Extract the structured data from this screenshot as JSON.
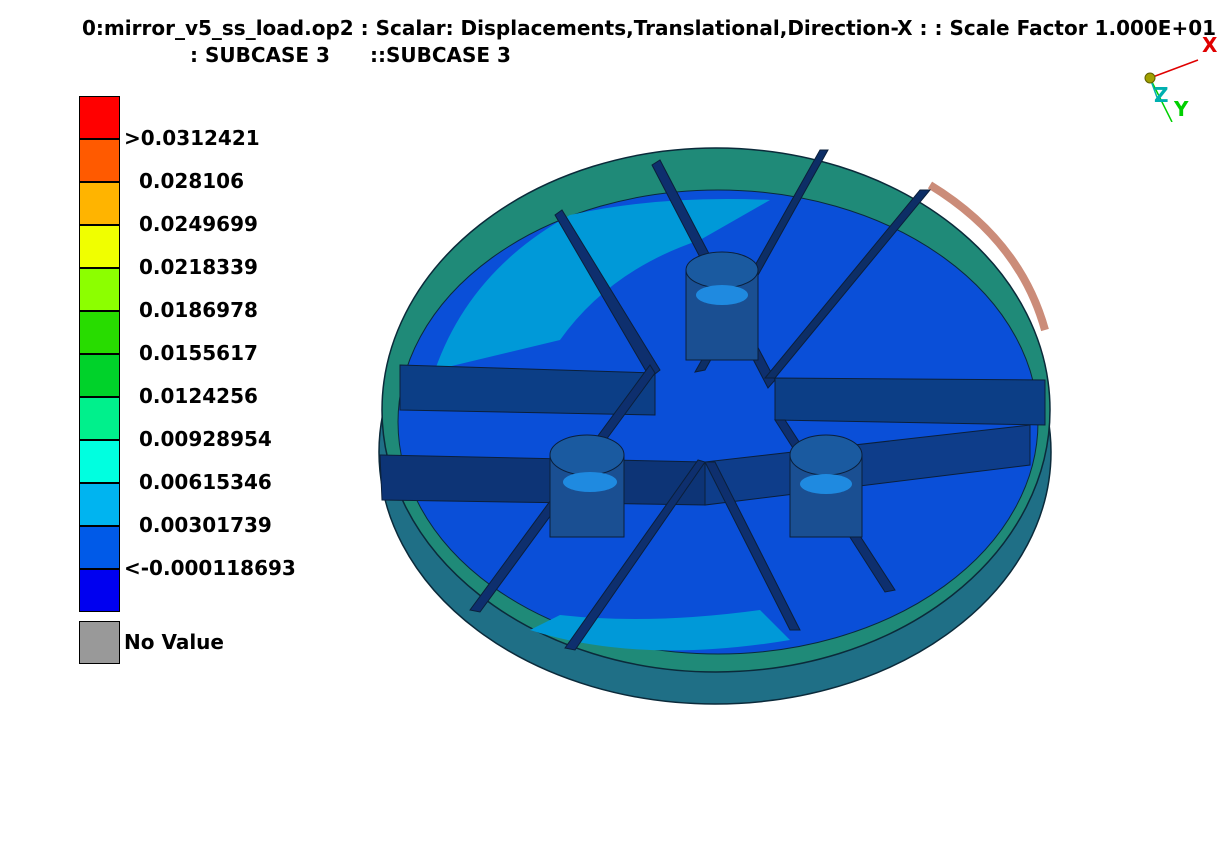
{
  "header": {
    "title_line1": "0:mirror_v5_ss_load.op2  : Scalar: Displacements,Translational,Direction-X :  : Scale Factor 1.000E+01",
    "subcase_a": ": SUBCASE 3",
    "subcase_b": "::SUBCASE 3"
  },
  "legend": {
    "colors": [
      "#ff0000",
      "#ff5a00",
      "#ffb400",
      "#f0ff00",
      "#8cff00",
      "#28dc00",
      "#00d22a",
      "#00f08c",
      "#00ffe0",
      "#00b4f0",
      "#005ae8",
      "#0000f0"
    ],
    "labels": [
      ">0.0312421",
      "0.028106",
      "0.0249699",
      "0.0218339",
      "0.0186978",
      "0.0155617",
      "0.0124256",
      "0.00928954",
      "0.00615346",
      "0.00301739",
      "<-0.000118693"
    ],
    "no_value_color": "#999999",
    "no_value_label": "No Value"
  },
  "triad": {
    "x_label": "X",
    "y_label": "Y",
    "z_label": "Z",
    "x_color": "#e00000",
    "y_color": "#00e000",
    "z_color": "#00b0b0"
  },
  "model": {
    "colors": {
      "rim_outer": "#1f6f86",
      "rim_top": "#1f8a78",
      "floor_main": "#0a4fd8",
      "floor_light": "#0099d8",
      "rib_side": "#0c3e86",
      "rib_face": "#0e2f6e",
      "boss": "#1a4f92",
      "hot_edge": "#d0282a"
    }
  }
}
